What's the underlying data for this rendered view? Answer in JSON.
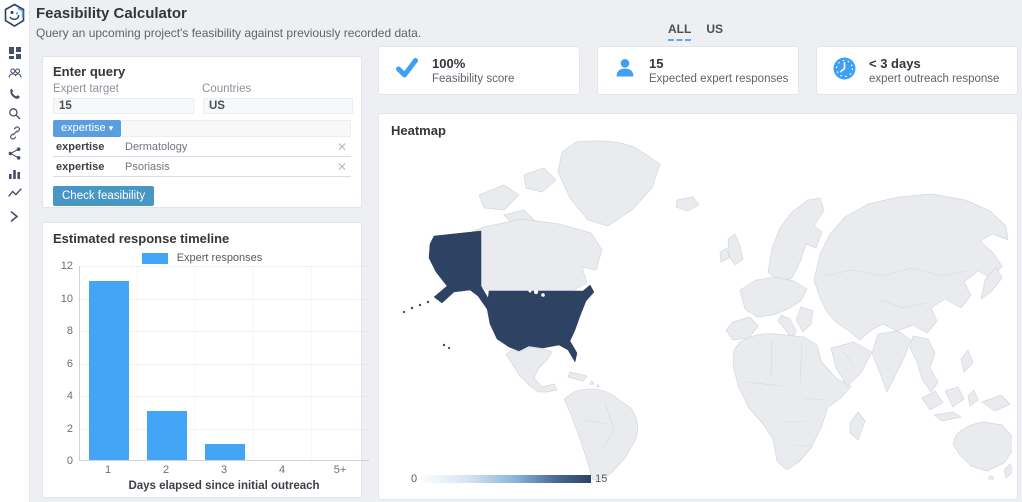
{
  "app": {
    "title": "Feasibility Calculator",
    "subtitle": "Query an upcoming project's feasibility against previously recorded data."
  },
  "tabs": [
    {
      "label": "ALL",
      "active": true
    },
    {
      "label": "US",
      "active": false
    }
  ],
  "sidebar": {
    "icons": [
      "logo",
      "dashboard",
      "users",
      "phone",
      "search",
      "link",
      "share",
      "bar-chart",
      "line-chart",
      "collapse-chevron"
    ]
  },
  "query_panel": {
    "heading": "Enter query",
    "expert_target_label": "Expert target",
    "expert_target_value": "15",
    "countries_label": "Countries",
    "countries_value": "US",
    "expertise_button_label": "expertise",
    "expertise_button_chevron": "▾",
    "filters": [
      {
        "key": "expertise",
        "value": "Dermatology",
        "remove": "✕"
      },
      {
        "key": "expertise",
        "value": "Psoriasis",
        "remove": "✕"
      }
    ],
    "submit_label": "Check feasibility"
  },
  "stats": [
    {
      "icon": "check",
      "value": "100%",
      "label": "Feasibility score"
    },
    {
      "icon": "person",
      "value": "15",
      "label": "Expected expert responses"
    },
    {
      "icon": "clock",
      "value": "< 3 days",
      "label": "expert outreach response"
    }
  ],
  "timeline_panel": {
    "heading": "Estimated response timeline"
  },
  "heatmap_panel": {
    "heading": "Heatmap"
  },
  "chart_data": [
    {
      "type": "bar",
      "title": "Estimated response timeline",
      "categories": [
        "1",
        "2",
        "3",
        "4",
        "5+"
      ],
      "series": [
        {
          "name": "Expert responses",
          "values": [
            11,
            3,
            1,
            0,
            0
          ]
        }
      ],
      "xlabel": "Days elapsed since initial outreach",
      "ylabel": "",
      "ylim": [
        0,
        12
      ],
      "yticks": [
        0,
        2,
        4,
        6,
        8,
        10,
        12
      ],
      "legend_position": "top",
      "grid": true,
      "bar_color": "#42a5f5"
    },
    {
      "type": "heatmap",
      "title": "Heatmap",
      "scale": {
        "min": 0,
        "max": 15
      },
      "regions": [
        {
          "name": "United States",
          "value": 15
        }
      ],
      "colors": {
        "default": "#e9ebee",
        "border": "#d4d8dc",
        "max": "#2e4263",
        "min": "#fbfdfe"
      }
    }
  ],
  "colors": {
    "accent_blue": "#42a5f5",
    "icon_blue": "#3da0f2",
    "dropdown_blue": "#5a9de0",
    "submit_blue": "#4796c4",
    "map_dark": "#2e4263",
    "tab_underline": "#69a4da"
  }
}
